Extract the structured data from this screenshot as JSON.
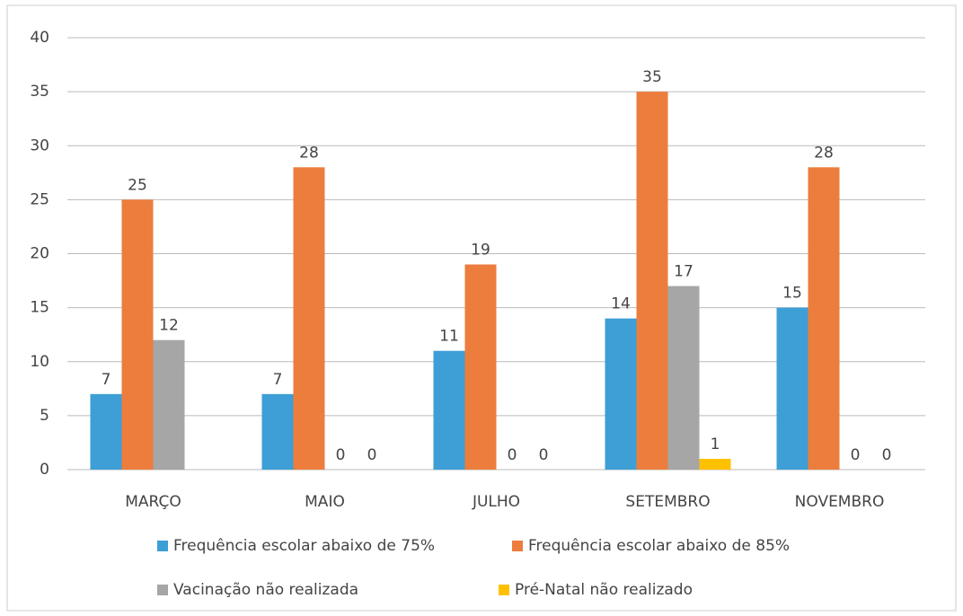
{
  "chart_data": {
    "type": "bar",
    "categories": [
      "MARÇO",
      "MAIO",
      "JULHO",
      "SETEMBRO",
      "NOVEMBRO"
    ],
    "series": [
      {
        "name": "Frequência escolar abaixo de 75%",
        "color": "#3d9fd6",
        "values": [
          7,
          7,
          11,
          14,
          15
        ]
      },
      {
        "name": "Frequência escolar abaixo de 85%",
        "color": "#ec7d3d",
        "values": [
          25,
          28,
          19,
          35,
          28
        ]
      },
      {
        "name": "Vacinação não realizada",
        "color": "#a6a6a6",
        "values": [
          12,
          0,
          0,
          17,
          0
        ]
      },
      {
        "name": "Pré-Natal não realizado",
        "color": "#ffc000",
        "values": [
          null,
          0,
          0,
          1,
          0
        ]
      }
    ],
    "ylim": [
      0,
      40
    ],
    "yticks": [
      0,
      5,
      10,
      15,
      20,
      25,
      30,
      35,
      40
    ],
    "grid": true
  }
}
